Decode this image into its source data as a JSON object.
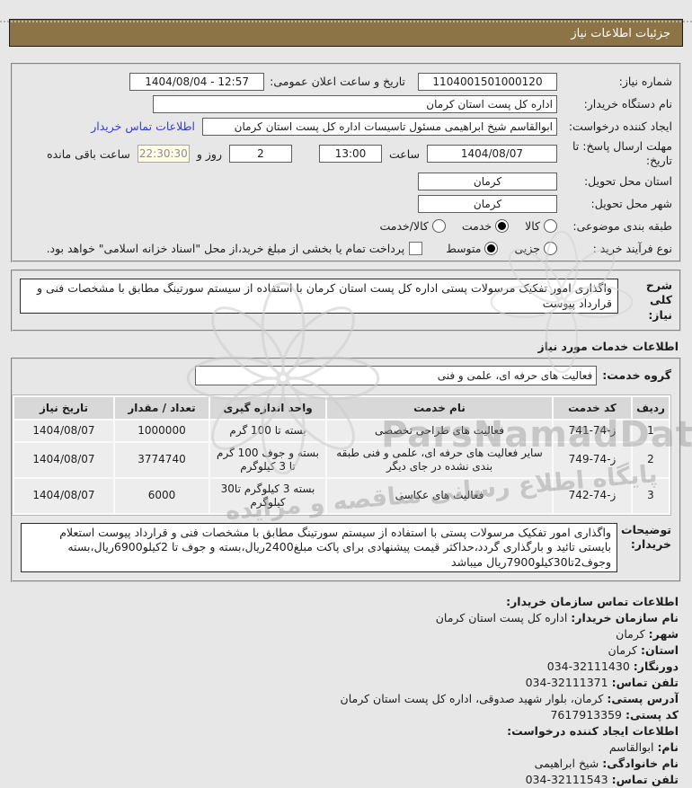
{
  "page": {
    "title_bar": "جزئیات اطلاعات نیاز"
  },
  "fields": {
    "need_number": {
      "label": "شماره نیاز:",
      "value": "1104001501000120"
    },
    "announce": {
      "label": "تاریخ و ساعت اعلان عمومی:",
      "value": "1404/08/04 - 12:57"
    },
    "device": {
      "label": "نام دستگاه خریدار:",
      "value": "اداره کل پست استان کرمان"
    },
    "creator": {
      "label": "ایجاد کننده درخواست:",
      "value": "ابوالقاسم شیخ ابراهیمی مسئول تاسیسات اداره کل پست استان کرمان",
      "link_label": "اطلاعات تماس خریدار"
    },
    "deadline": {
      "label": "مهلت ارسال پاسخ: تا تاریخ:",
      "date": "1404/08/07",
      "hour_label": "ساعت",
      "time": "13:00",
      "days": "2",
      "days_sep": "روز و",
      "countdown": "22:30:30",
      "remain_label": "ساعت باقی مانده"
    },
    "province": {
      "label": "استان محل تحویل:",
      "value": "کرمان"
    },
    "city": {
      "label": "شهر محل تحویل:",
      "value": "کرمان"
    },
    "subject": {
      "label": "طبقه بندی موضوعی:",
      "options": [
        {
          "label": "کالا",
          "checked": false
        },
        {
          "label": "خدمت",
          "checked": true
        },
        {
          "label": "کالا/خدمت",
          "checked": false
        }
      ]
    },
    "process": {
      "label": "نوع فرآیند خرید :",
      "options": [
        {
          "label": "جزیی",
          "checked": false
        },
        {
          "label": "متوسط",
          "checked": true
        }
      ],
      "checkbox_checked": false,
      "checkbox_label": "پرداخت تمام یا بخشی از مبلغ خرید،از محل \"اسناد خزانه اسلامی\" خواهد بود."
    }
  },
  "general_desc": {
    "label": "شرح کلی نیاز:",
    "value": "واگذاری امور تفکیک مرسولات پستی اداره کل پست استان کرمان با استفاده از سیستم سورتینگ مطابق با مشخصات فنی و قرارداد پیوست"
  },
  "services_heading": "اطلاعات خدمات مورد نیاز",
  "service_group": {
    "label": "گروه خدمت:",
    "value": "فعالیت های حرفه ای، علمی و فنی"
  },
  "table": {
    "headers": [
      "ردیف",
      "کد خدمت",
      "نام خدمت",
      "واحد اندازه گیری",
      "تعداد / مقدار",
      "تاریخ نیاز"
    ],
    "rows": [
      [
        "1",
        "ز-74-741",
        "فعالیت های طراحی تخصصی",
        "بسته تا 100 گرم",
        "1000000",
        "1404/08/07"
      ],
      [
        "2",
        "ز-74-749",
        "سایر فعالیت های حرفه ای، علمی و فنی طبقه بندی نشده در جای دیگر",
        "بسته و جوف 100 گرم تا 3 کیلوگرم",
        "3774740",
        "1404/08/07"
      ],
      [
        "3",
        "ز-74-742",
        "فعالیت های عکاسی",
        "بسته 3 کیلوگرم تا30 کیلوگرم",
        "6000",
        "1404/08/07"
      ]
    ]
  },
  "buyer_notes": {
    "label": "توضیحات خریدار:",
    "value": "واگذاری امور تفکیک مرسولات پستی با استفاده از سیستم سورتینگ مطابق با مشخصات فنی و قرارداد پیوست استعلام بایستی تائید و بارگذاری گردد،حداکثر قیمت پیشنهادی برای پاکت مبلغ2400ریال،بسته و جوف تا 2کیلو6900ریال،بسته وجوف2تا30کیلو7900ریال میباشد"
  },
  "buyer_contact": {
    "heading": "اطلاعات تماس سازمان خریدار:",
    "lines": [
      {
        "label": "نام سازمان خریدار:",
        "value": "اداره کل پست استان کرمان"
      },
      {
        "label": "شهر:",
        "value": "کرمان"
      },
      {
        "label": "استان:",
        "value": "کرمان"
      },
      {
        "label": "دورنگار:",
        "value": "32111430-034"
      },
      {
        "label": "تلفن تماس:",
        "value": "32111371-034"
      },
      {
        "label": "آدرس پستی:",
        "value": "کرمان، بلوار شهید صدوقی، اداره کل پست استان کرمان"
      },
      {
        "label": "کد پستی:",
        "value": "7617913359"
      }
    ]
  },
  "creator_contact": {
    "heading": "اطلاعات ایجاد کننده درخواست:",
    "lines": [
      {
        "label": "نام:",
        "value": "ابوالقاسم"
      },
      {
        "label": "نام خانوادگی:",
        "value": "شیخ ابراهیمی"
      },
      {
        "label": "تلفن تماس:",
        "value": "32111543-034"
      }
    ]
  },
  "watermarks": {
    "latin": "ParsNamadData",
    "persian": "پایگاه اطلاع رسانی مناقصه و مزایده"
  },
  "colors": {
    "title_bar_bg": "#8d7446",
    "link": "#3a3ace",
    "countdown_bg": "#fffde4",
    "table_header_bg": "#d8d8d8",
    "page_bg": "#e7e7e7"
  }
}
